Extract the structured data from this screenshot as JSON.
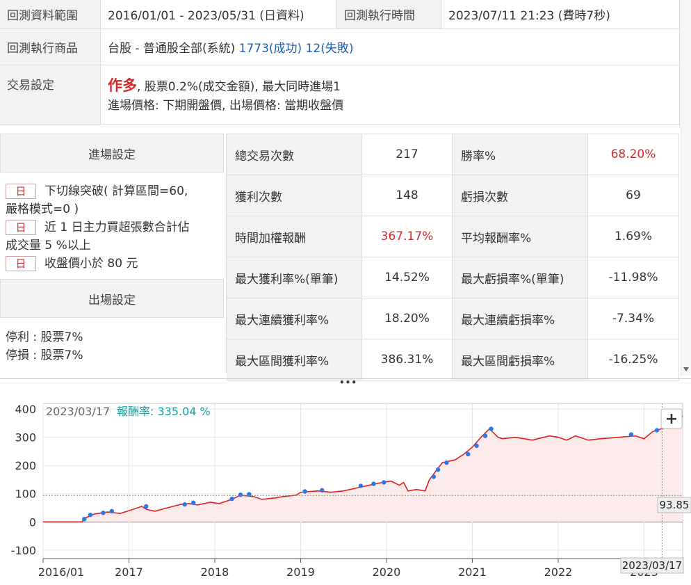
{
  "info": {
    "range_label": "回測資料範圍",
    "range_value": "2016/01/01 - 2023/05/31 (日資料)",
    "exec_time_label": "回測執行時間",
    "exec_time_value": "2023/07/11 21:23 (費時7秒)",
    "product_label": "回測執行商品",
    "product_name": "台股 - 普通股全部(系統)",
    "product_success": "1773(成功)",
    "product_fail": "12(失敗)",
    "trade_label": "交易設定",
    "trade_direction": "作多",
    "trade_fee": ", 股票0.2%(成交金額), 最大同時進場1",
    "trade_prices": "進場價格: 下期開盤價, 出場價格: 當期收盤價"
  },
  "entry": {
    "title": "進場設定",
    "conditions": [
      {
        "badge": "日",
        "line1": "下切線突破( 計算區間=60,",
        "line2": "嚴格模式=0 )"
      },
      {
        "badge": "日",
        "line1": "近 1 日主力買超張數合計佔",
        "line2": "成交量 5 %以上"
      },
      {
        "badge": "日",
        "line1": "收盤價小於 80 元",
        "line2": ""
      }
    ]
  },
  "exit": {
    "title": "出場設定",
    "take_profit": "停利 : 股票7%",
    "stop_loss": "停損 : 股票7%"
  },
  "stats": [
    {
      "l1": "總交易次數",
      "v1": "217",
      "l2": "勝率%",
      "v2": "68.20%",
      "v1red": false,
      "v2red": true
    },
    {
      "l1": "獲利次數",
      "v1": "148",
      "l2": "虧損次數",
      "v2": "69",
      "v1red": false,
      "v2red": false
    },
    {
      "l1": "時間加權報酬",
      "v1": "367.17%",
      "l2": "平均報酬率%",
      "v2": "1.69%",
      "v1red": true,
      "v2red": false
    },
    {
      "l1": "最大獲利率%(單筆)",
      "v1": "14.52%",
      "l2": "最大虧損率%(單筆)",
      "v2": "-11.98%",
      "v1red": false,
      "v2red": false
    },
    {
      "l1": "最大連續獲利率%",
      "v1": "18.20%",
      "l2": "最大連續虧損率%",
      "v2": "-7.34%",
      "v1red": false,
      "v2red": false
    },
    {
      "l1": "最大區間獲利率%",
      "v1": "386.31%",
      "l2": "最大區間虧損率%",
      "v2": "-16.25%",
      "v1red": false,
      "v2red": false
    }
  ],
  "chart": {
    "hover_date": "2023/03/17",
    "return_label": "報酬率:",
    "return_value": "335.04 %",
    "hover_value_label": "93.85",
    "crosshair_date_label": "2023/03/17",
    "zoom_label": "+",
    "splitter_label": "•••",
    "colors": {
      "line": "#e02020",
      "marker": "#2b78e4",
      "fill": "#fde8e8",
      "accent": "#1aa0a0"
    }
  },
  "chart_data": {
    "type": "line",
    "x_tick_labels": [
      "2016/01",
      "2017",
      "2018",
      "2019",
      "2020",
      "2021",
      "2022",
      "2023"
    ],
    "y_ticks": [
      -100,
      0,
      100,
      200,
      300,
      400
    ],
    "ylim": [
      -130,
      420
    ],
    "xlim": [
      2016.0,
      2023.45
    ],
    "reference_value": 93.85,
    "crosshair_x": 2023.21,
    "series": [
      {
        "x": [
          2016.0,
          2016.45,
          2016.5,
          2016.6,
          2016.75,
          2016.9,
          2017.0,
          2017.15,
          2017.2,
          2017.3,
          2017.45,
          2017.6,
          2017.7,
          2017.8,
          2017.95,
          2018.05,
          2018.2,
          2018.3,
          2018.45,
          2018.55,
          2018.7,
          2018.8,
          2018.95,
          2019.0,
          2019.2,
          2019.35,
          2019.5,
          2019.65,
          2019.8,
          2019.95,
          2020.05,
          2020.15,
          2020.2,
          2020.25,
          2020.35,
          2020.45,
          2020.5,
          2020.6,
          2020.65,
          2020.8,
          2020.9,
          2021.0,
          2021.1,
          2021.2,
          2021.3,
          2021.35,
          2021.5,
          2021.7,
          2021.9,
          2022.0,
          2022.1,
          2022.2,
          2022.35,
          2022.5,
          2022.7,
          2022.9,
          2023.0,
          2023.1,
          2023.2,
          2023.3,
          2023.4,
          2023.45
        ],
        "y": [
          0,
          0,
          15,
          28,
          35,
          30,
          40,
          55,
          45,
          38,
          50,
          62,
          65,
          60,
          70,
          65,
          80,
          95,
          90,
          80,
          85,
          90,
          95,
          105,
          110,
          105,
          110,
          120,
          130,
          140,
          145,
          130,
          140,
          110,
          115,
          110,
          150,
          190,
          210,
          220,
          240,
          265,
          300,
          330,
          300,
          295,
          300,
          290,
          305,
          300,
          290,
          305,
          290,
          295,
          300,
          305,
          295,
          320,
          330,
          335,
          355,
          375
        ],
        "markers": [
          [
            2016.48,
            10
          ],
          [
            2016.55,
            25
          ],
          [
            2016.7,
            32
          ],
          [
            2016.8,
            38
          ],
          [
            2017.2,
            55
          ],
          [
            2017.65,
            62
          ],
          [
            2017.75,
            68
          ],
          [
            2018.2,
            82
          ],
          [
            2018.3,
            96
          ],
          [
            2018.4,
            98
          ],
          [
            2019.05,
            108
          ],
          [
            2019.25,
            112
          ],
          [
            2019.7,
            128
          ],
          [
            2019.85,
            135
          ],
          [
            2019.97,
            140
          ],
          [
            2020.55,
            160
          ],
          [
            2020.6,
            185
          ],
          [
            2020.7,
            210
          ],
          [
            2020.95,
            240
          ],
          [
            2021.05,
            270
          ],
          [
            2021.15,
            305
          ],
          [
            2021.22,
            330
          ],
          [
            2022.85,
            310
          ],
          [
            2023.15,
            325
          ],
          [
            2023.3,
            345
          ],
          [
            2023.42,
            372
          ]
        ]
      }
    ]
  }
}
